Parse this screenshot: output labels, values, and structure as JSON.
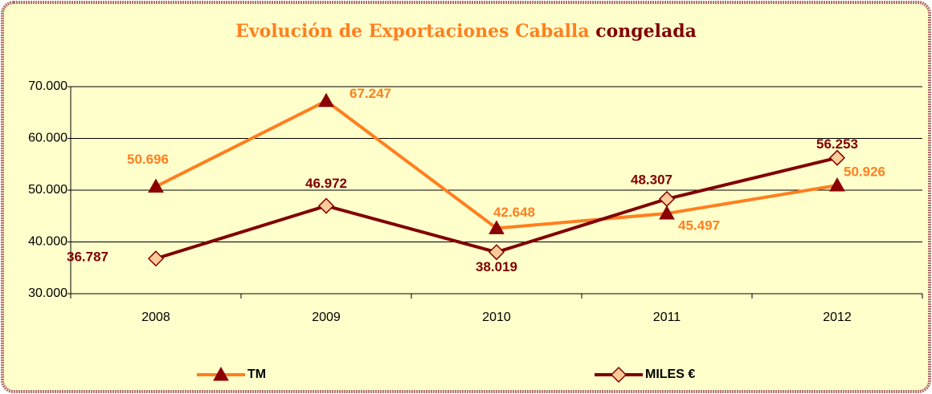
{
  "chart_data": {
    "type": "line",
    "title": [
      "Evolución de Exportaciones Caballa",
      "congelada"
    ],
    "categories": [
      "2008",
      "2009",
      "2010",
      "2011",
      "2012"
    ],
    "series": [
      {
        "name": "TM",
        "color": "#ff7f1f",
        "marker_color": "#8b0000",
        "values": [
          50696,
          67247,
          42648,
          45497,
          50926
        ],
        "value_labels": [
          "50.696",
          "67.247",
          "42.648",
          "45.497",
          "50.926"
        ]
      },
      {
        "name": "MILES €",
        "color": "#800000",
        "marker_color": "#ffcc99",
        "values": [
          36787,
          46972,
          38019,
          48307,
          56253
        ],
        "value_labels": [
          "36.787",
          "46.972",
          "38.019",
          "48.307",
          "56.253"
        ]
      }
    ],
    "ylim": [
      30000,
      70000
    ],
    "yticks": [
      {
        "value": 30000,
        "label": "30.000"
      },
      {
        "value": 40000,
        "label": "40.000"
      },
      {
        "value": 50000,
        "label": "50.000"
      },
      {
        "value": 60000,
        "label": "60.000"
      },
      {
        "value": 70000,
        "label": "70.000"
      }
    ],
    "grid": true
  }
}
